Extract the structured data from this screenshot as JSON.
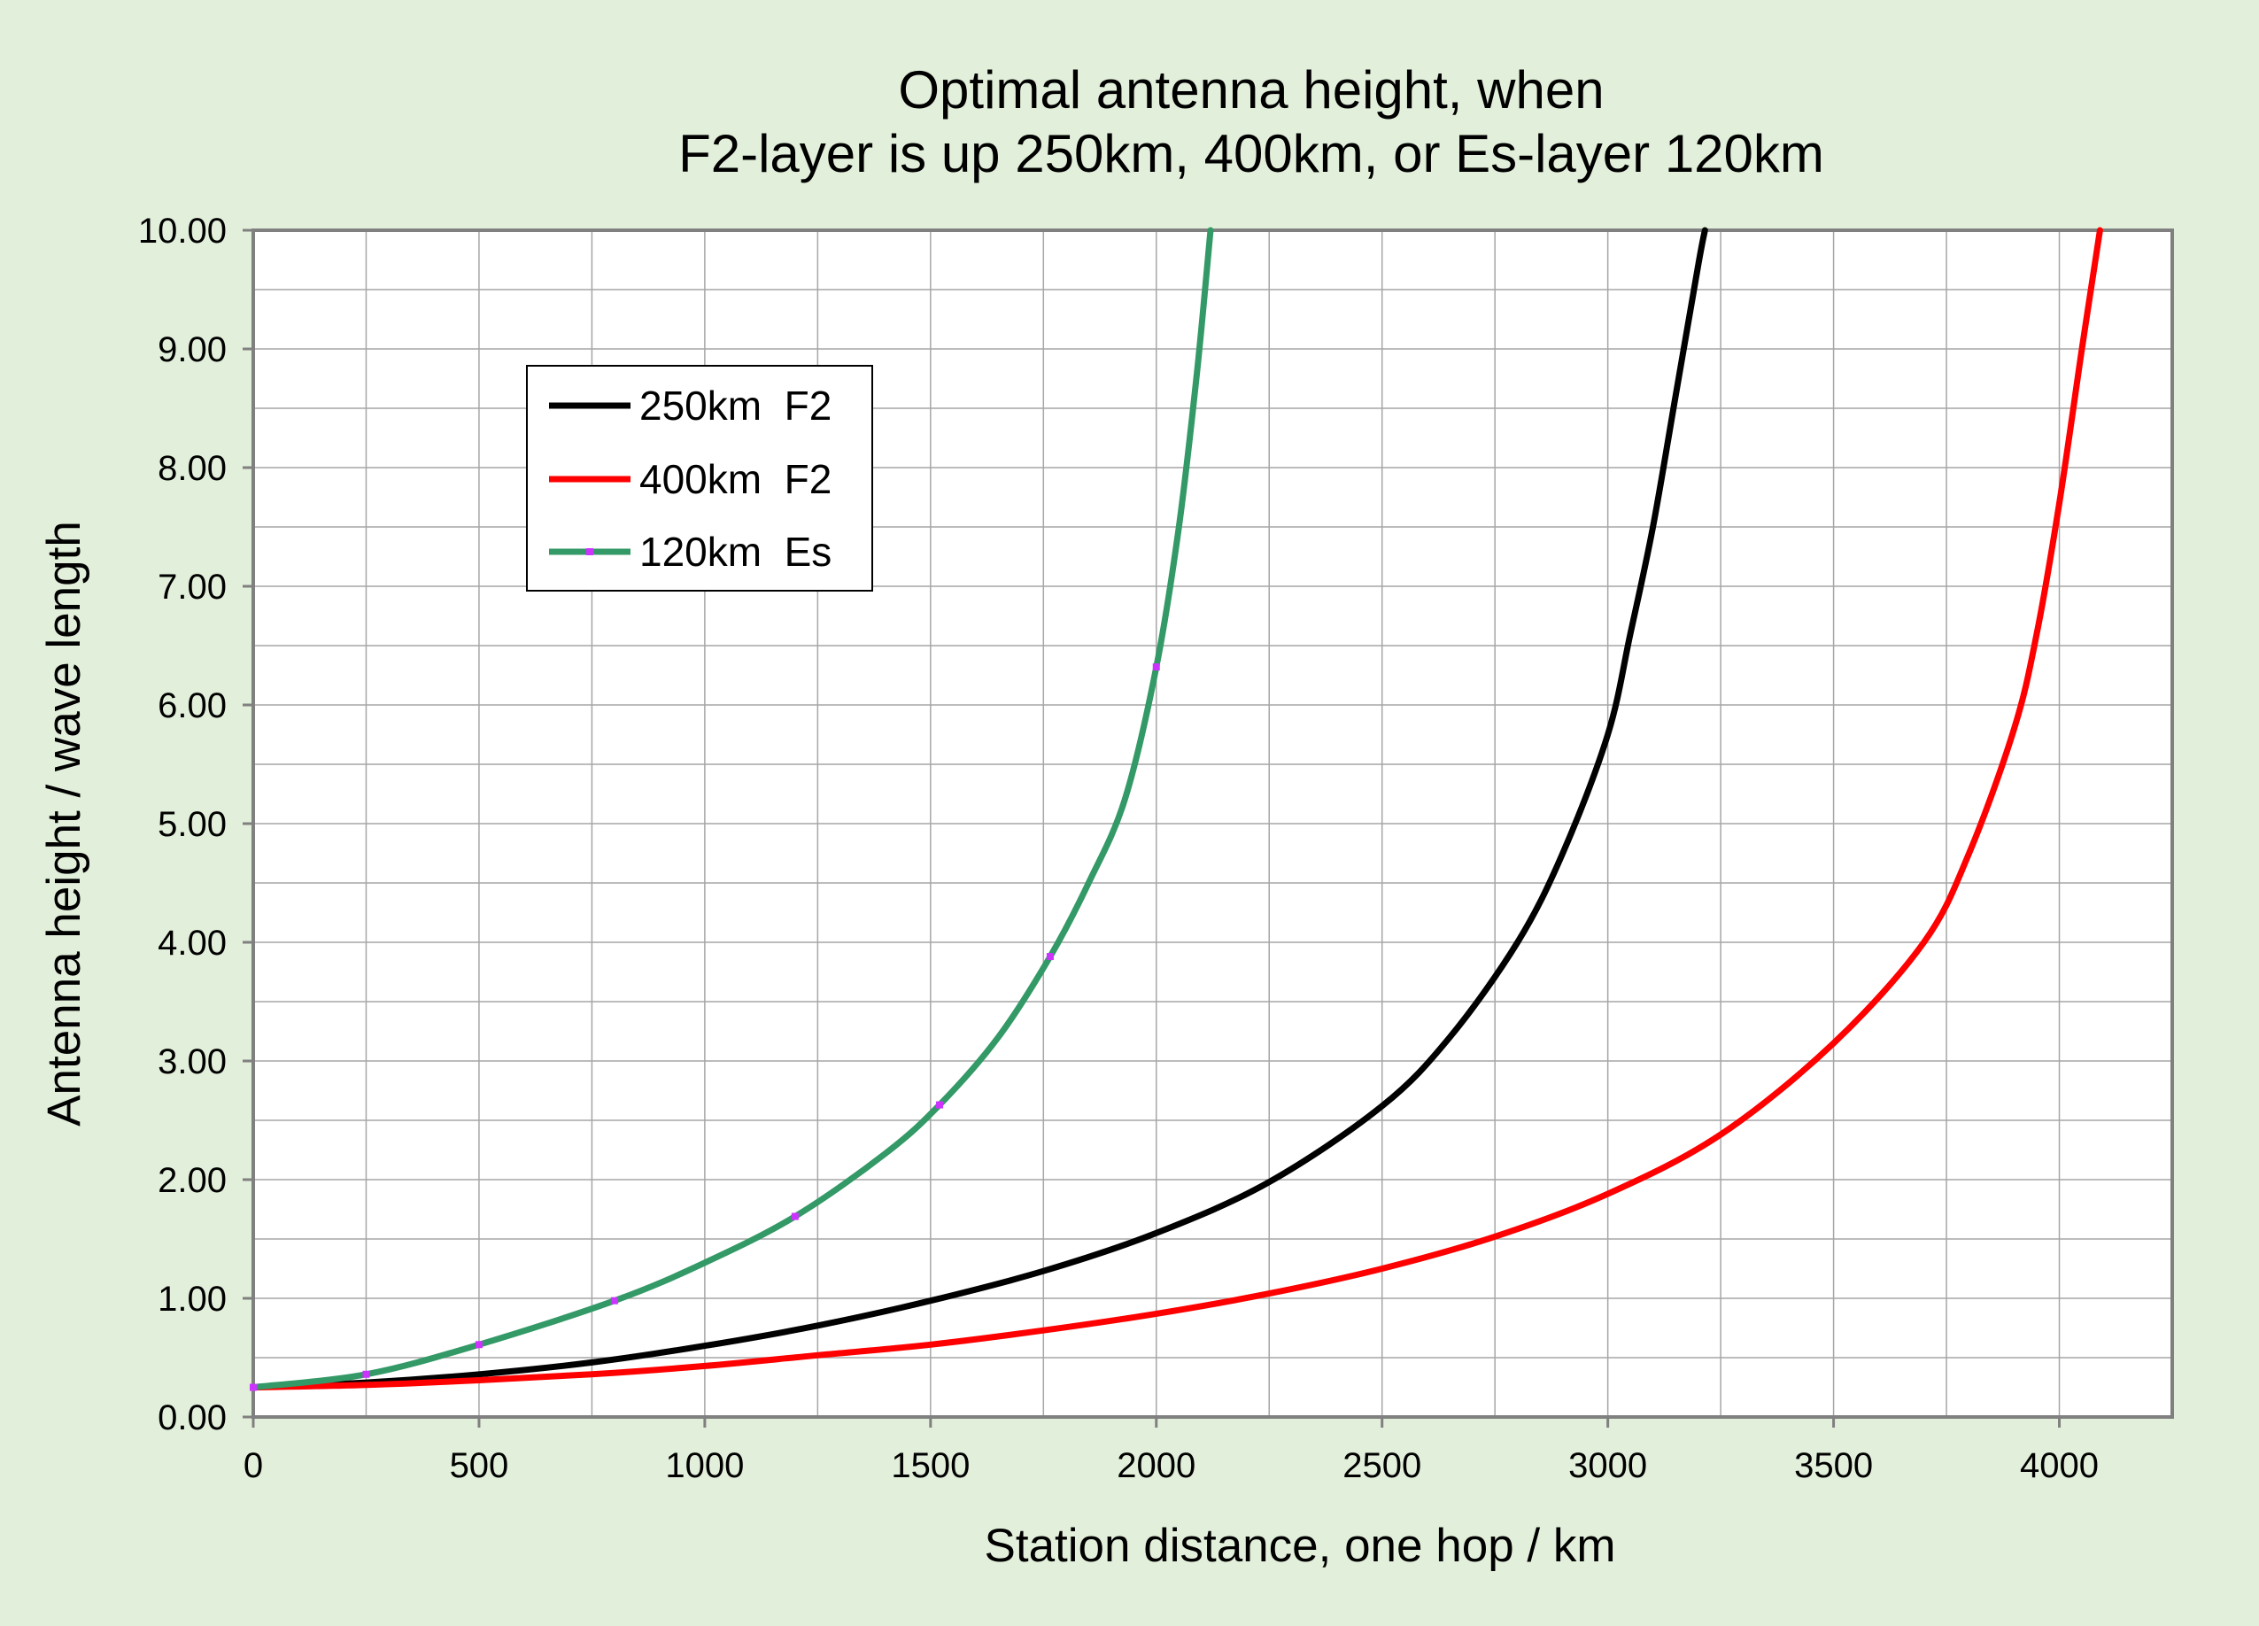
{
  "chart_data": {
    "type": "line",
    "title_lines": [
      "Optimal antenna height, when",
      "F2-layer is up 250km, 400km, or Es-layer 120km"
    ],
    "xlabel": "Station distance, one hop / km",
    "ylabel": "Antenna height / wave length",
    "xlim": [
      0,
      4250
    ],
    "ylim": [
      0,
      10
    ],
    "x_ticks": [
      0,
      500,
      1000,
      1500,
      2000,
      2500,
      3000,
      3500,
      4000
    ],
    "x_tick_labels": [
      "0",
      "500",
      "1000",
      "1500",
      "2000",
      "2500",
      "3000",
      "3500",
      "4000"
    ],
    "y_ticks": [
      0,
      1,
      2,
      3,
      4,
      5,
      6,
      7,
      8,
      9,
      10
    ],
    "y_tick_labels": [
      "0.00",
      "1.00",
      "2.00",
      "3.00",
      "4.00",
      "5.00",
      "6.00",
      "7.00",
      "8.00",
      "9.00",
      "10.00"
    ],
    "grid": true,
    "legend_position": "top-left",
    "series": [
      {
        "name": "250km  F2",
        "color": "#000000",
        "markers": false,
        "x": [
          0,
          250,
          500,
          750,
          1000,
          1250,
          1500,
          1750,
          2000,
          2250,
          2500,
          2650,
          2800,
          2900,
          3000,
          3050,
          3100,
          3150,
          3200,
          3215
        ],
        "y": [
          0.25,
          0.29,
          0.36,
          0.46,
          0.6,
          0.77,
          0.98,
          1.23,
          1.55,
          1.98,
          2.62,
          3.2,
          4.0,
          4.75,
          5.75,
          6.6,
          7.5,
          8.6,
          9.7,
          10.0
        ]
      },
      {
        "name": "400km  F2",
        "color": "#FF0000",
        "markers": false,
        "x": [
          0,
          250,
          500,
          750,
          1000,
          1250,
          1500,
          1750,
          2000,
          2250,
          2500,
          2750,
          3000,
          3250,
          3500,
          3700,
          3800,
          3900,
          3950,
          4000,
          4050,
          4090
        ],
        "y": [
          0.25,
          0.27,
          0.31,
          0.36,
          0.43,
          0.52,
          0.61,
          0.73,
          0.87,
          1.04,
          1.25,
          1.52,
          1.88,
          2.38,
          3.15,
          4.0,
          4.75,
          5.8,
          6.6,
          7.7,
          9.0,
          10.0
        ]
      },
      {
        "name": "120km  Es",
        "color": "#339966",
        "marker_color": "#CC33FF",
        "markers": true,
        "marker_x": [
          0,
          250,
          500,
          800,
          1200,
          1520,
          1765,
          2000
        ],
        "x": [
          0,
          250,
          500,
          800,
          1000,
          1200,
          1400,
          1520,
          1650,
          1765,
          1850,
          1930,
          2000,
          2050,
          2090,
          2120
        ],
        "y": [
          0.25,
          0.36,
          0.61,
          0.98,
          1.3,
          1.69,
          2.22,
          2.63,
          3.2,
          3.88,
          4.5,
          5.2,
          6.32,
          7.5,
          8.8,
          10.0
        ]
      }
    ]
  }
}
